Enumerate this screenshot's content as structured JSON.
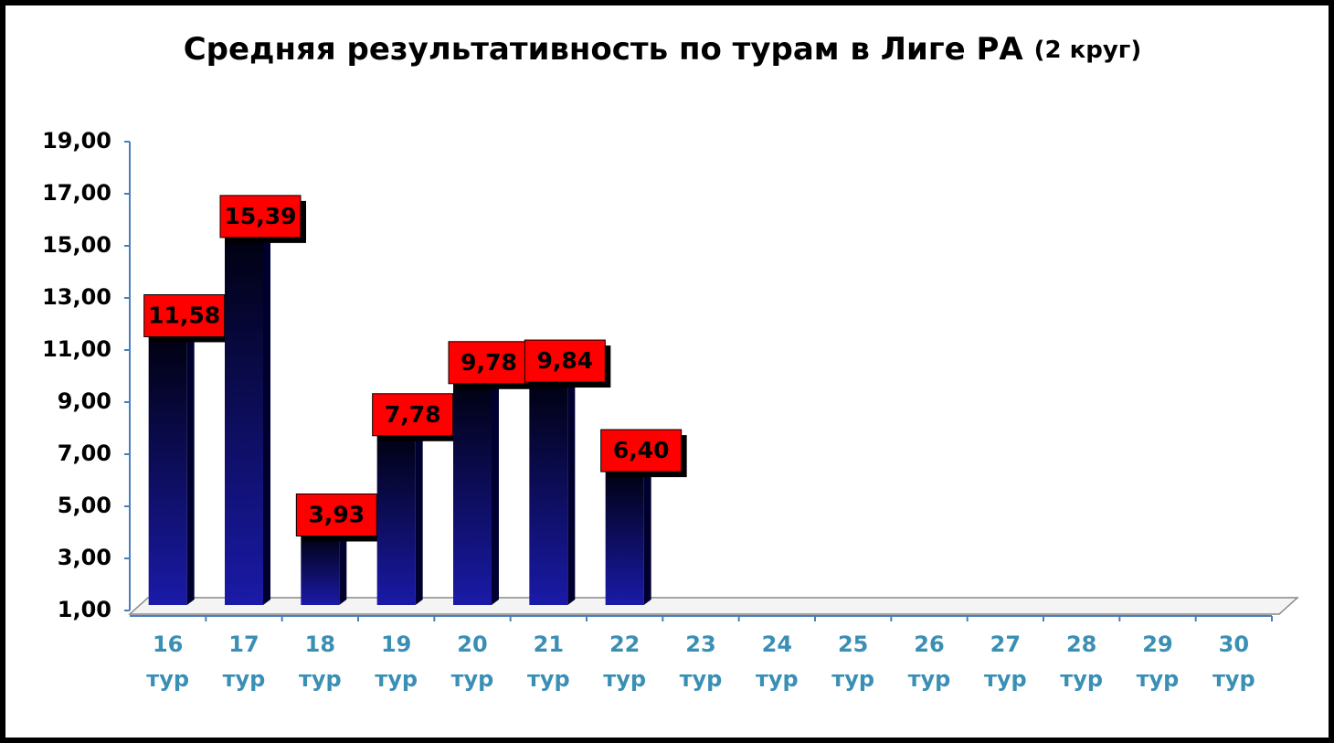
{
  "chart_data": {
    "type": "bar",
    "title": "Средняя результативность по турам в Лиге РА",
    "subtitle": "(2 круг)",
    "categories": [
      "16 тур",
      "17 тур",
      "18 тур",
      "19 тур",
      "20 тур",
      "21 тур",
      "22 тур",
      "23 тур",
      "24 тур",
      "25 тур",
      "26 тур",
      "27 тур",
      "28 тур",
      "29 тур",
      "30 тур"
    ],
    "values": [
      11.58,
      15.39,
      3.93,
      7.78,
      9.78,
      9.84,
      6.4,
      null,
      null,
      null,
      null,
      null,
      null,
      null,
      null
    ],
    "value_labels": [
      "11,58",
      "15,39",
      "3,93",
      "7,78",
      "9,78",
      "9,84",
      "6,40",
      null,
      null,
      null,
      null,
      null,
      null,
      null,
      null
    ],
    "color": "#1a1aa8",
    "label_color": "#ff0000",
    "ylim": [
      1,
      19
    ],
    "yticks": [
      {
        "value": 1,
        "label": "1,00"
      },
      {
        "value": 3,
        "label": "3,00"
      },
      {
        "value": 5,
        "label": "5,00"
      },
      {
        "value": 7,
        "label": "7,00"
      },
      {
        "value": 9,
        "label": "9,00"
      },
      {
        "value": 11,
        "label": "11,00"
      },
      {
        "value": 13,
        "label": "13,00"
      },
      {
        "value": 15,
        "label": "15,00"
      },
      {
        "value": 17,
        "label": "17,00"
      },
      {
        "value": 19,
        "label": "19,00"
      }
    ],
    "grid": false
  }
}
